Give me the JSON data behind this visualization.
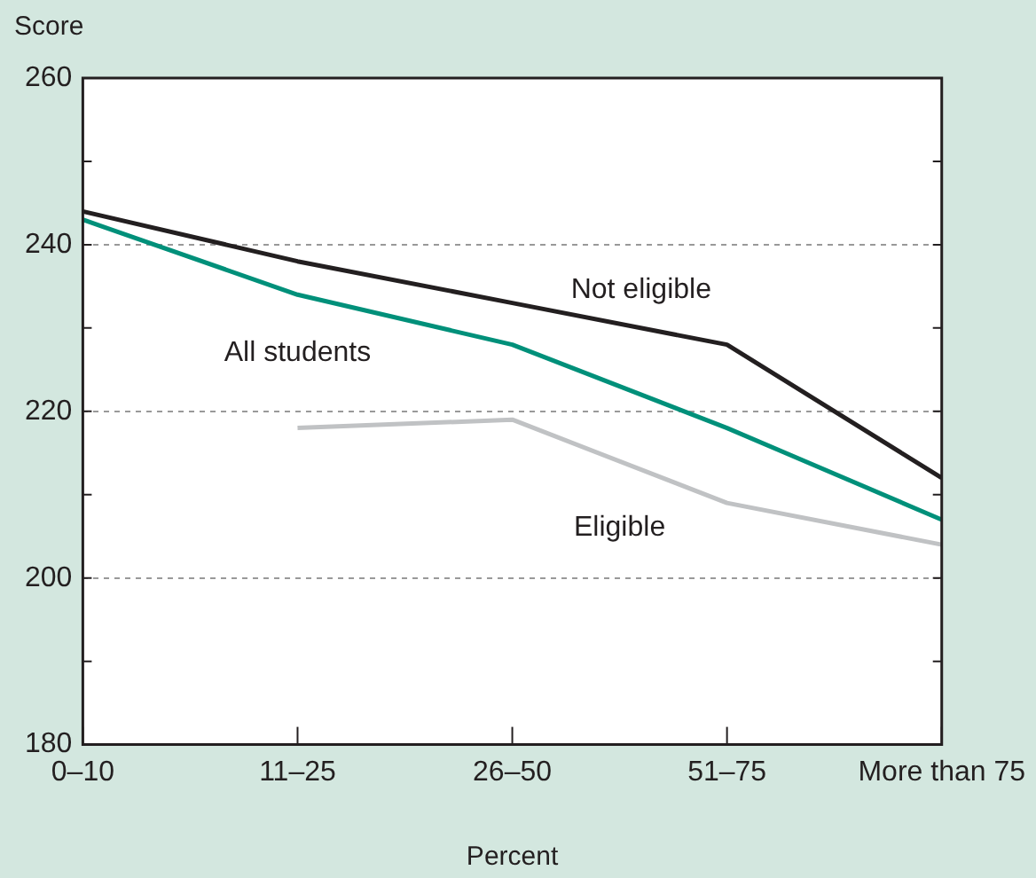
{
  "chart_data": {
    "type": "line",
    "ylabel": "Score",
    "xlabel": "Percent",
    "categories": [
      "0–10",
      "11–25",
      "26–50",
      "51–75",
      "More than 75"
    ],
    "series": [
      {
        "name": "Not eligible",
        "color": "#231f20",
        "values": [
          244,
          238,
          233,
          228,
          212
        ]
      },
      {
        "name": "All students",
        "color": "#00907a",
        "values": [
          243,
          234,
          228,
          218,
          207
        ]
      },
      {
        "name": "Eligible",
        "color": "#c0c2c4",
        "values": [
          null,
          218,
          219,
          209,
          204
        ]
      }
    ],
    "ylim": [
      180,
      260
    ],
    "yticks": [
      180,
      {
        "value": 190,
        "label": null
      },
      200,
      {
        "value": 210,
        "label": null
      },
      220,
      {
        "value": 230,
        "label": null
      },
      240,
      {
        "value": 250,
        "label": null
      },
      260
    ],
    "grid": "y",
    "legend": false,
    "marker": "none",
    "line_style": "solid"
  }
}
